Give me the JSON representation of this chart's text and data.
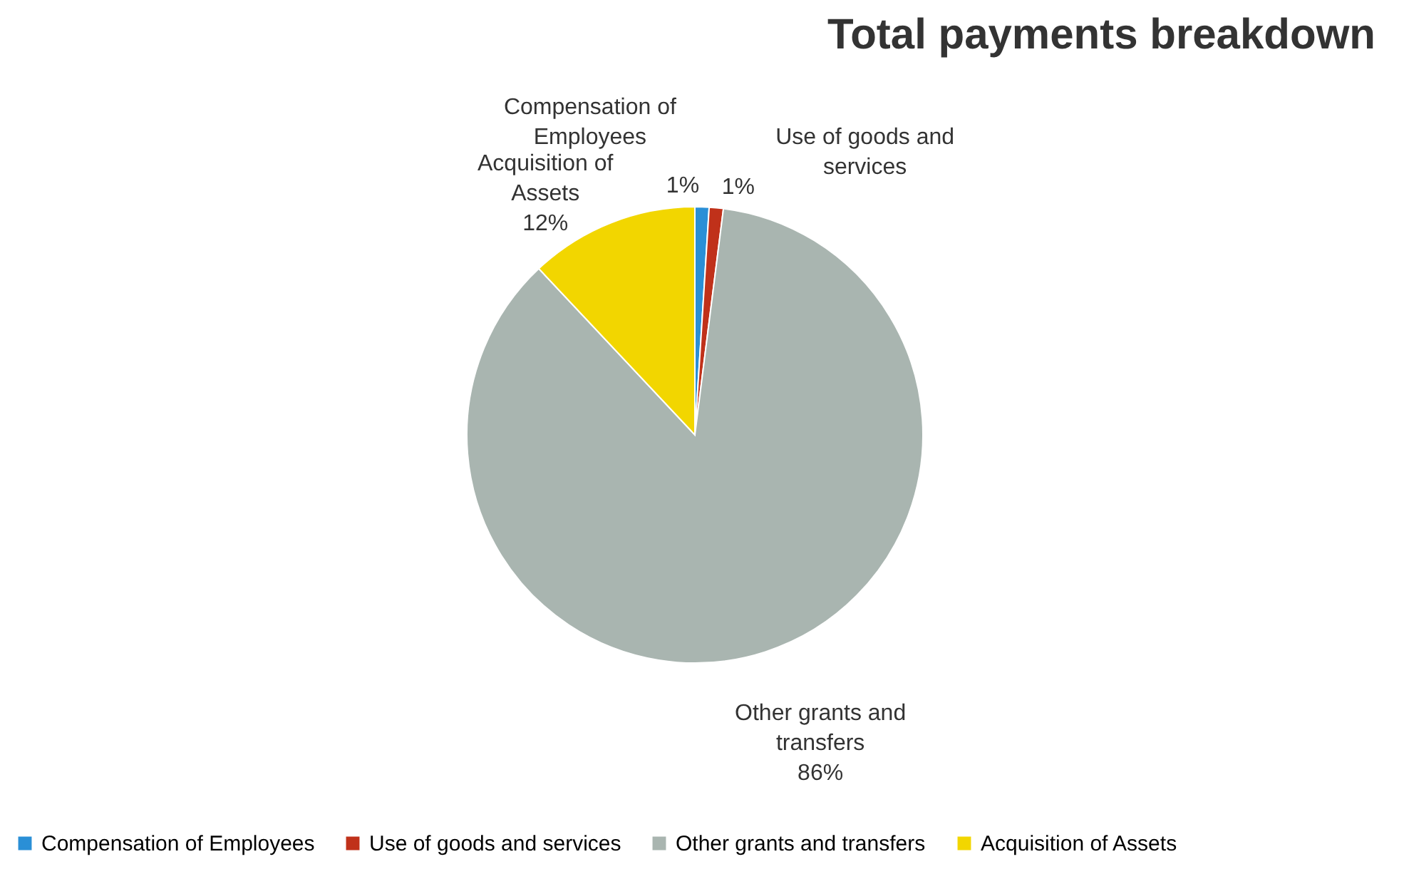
{
  "chart_data": {
    "type": "pie",
    "title": "Total payments breakdown",
    "categories": [
      "Compensation of Employees",
      "Use of goods and services",
      "Other grants and transfers",
      "Acquisition of Assets"
    ],
    "values": [
      1,
      1,
      86,
      12
    ],
    "colors": [
      "#2a8fd6",
      "#c0311a",
      "#a9b5b0",
      "#f2d600"
    ],
    "value_labels": [
      "1%",
      "1%",
      "86%",
      "12%"
    ],
    "legend": "bottom"
  }
}
